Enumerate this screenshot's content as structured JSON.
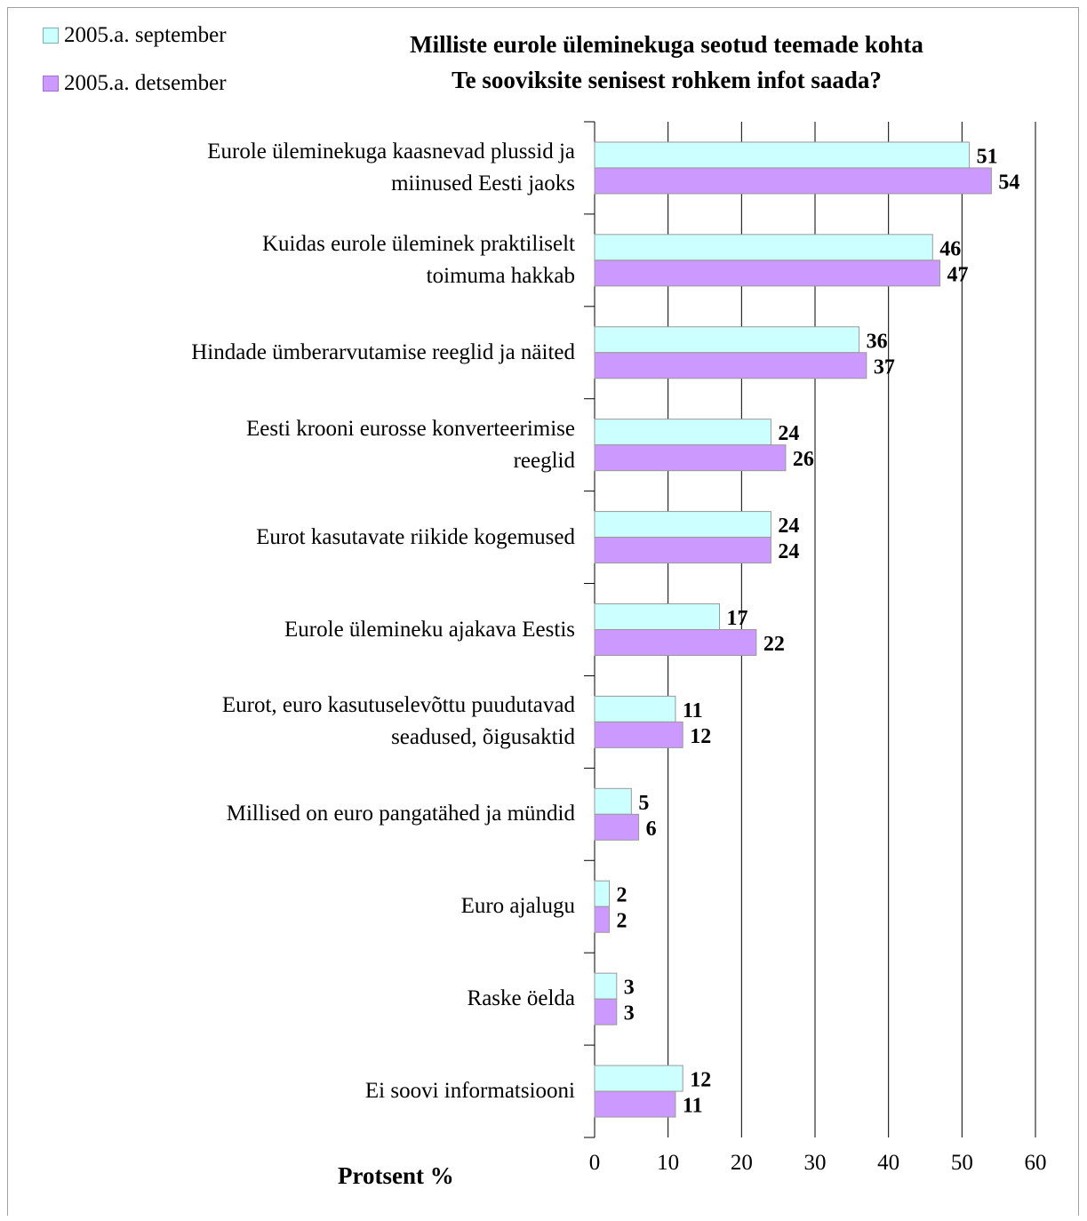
{
  "chart_data": {
    "type": "bar",
    "orientation": "horizontal",
    "title": "Milliste eurole üleminekuga seotud teemade kohta Te sooviksite senisest rohkem infot saada?",
    "title_lines": [
      "Milliste eurole üleminekuga seotud teemade kohta",
      "Te sooviksite senisest rohkem infot saada?"
    ],
    "xlabel": "Protsent %",
    "ylabel": "",
    "xlim": [
      0,
      60
    ],
    "xticks": [
      0,
      10,
      20,
      30,
      40,
      50,
      60
    ],
    "grid": true,
    "legend_position": "top-left",
    "categories": [
      "Eurole üleminekuga kaasnevad plussid ja miinused Eesti jaoks",
      "Kuidas eurole üleminek praktiliselt toimuma hakkab",
      "Hindade ümberarvutamise reeglid ja näited",
      "Eesti krooni eurosse konverteerimise reeglid",
      "Eurot kasutavate riikide kogemused",
      "Eurole ülemineku ajakava Eestis",
      "Eurot, euro kasutuselevõttu puudutavad seadused, õigusaktid",
      "Millised on euro pangatähed ja mündid",
      "Euro ajalugu",
      "Raske öelda",
      "Ei soovi informatsiooni"
    ],
    "category_lines": [
      [
        "Eurole üleminekuga kaasnevad plussid ja",
        "miinused Eesti jaoks"
      ],
      [
        "Kuidas eurole üleminek praktiliselt",
        "toimuma hakkab"
      ],
      [
        "Hindade ümberarvutamise reeglid ja näited"
      ],
      [
        "Eesti krooni eurosse konverteerimise",
        "reeglid"
      ],
      [
        "Eurot kasutavate riikide kogemused"
      ],
      [
        "Eurole ülemineku ajakava Eestis"
      ],
      [
        "Eurot, euro kasutuselevõttu puudutavad",
        "seadused, õigusaktid"
      ],
      [
        "Millised on euro pangatähed ja mündid"
      ],
      [
        "Euro ajalugu"
      ],
      [
        "Raske öelda"
      ],
      [
        "Ei soovi informatsiooni"
      ]
    ],
    "series": [
      {
        "name": "2005.a. september",
        "color": "#ccffff",
        "values": [
          51,
          46,
          36,
          24,
          24,
          17,
          11,
          5,
          2,
          3,
          12
        ]
      },
      {
        "name": "2005.a. detsember",
        "color": "#cc99ff",
        "values": [
          54,
          47,
          37,
          26,
          24,
          22,
          12,
          6,
          2,
          3,
          11
        ]
      }
    ]
  }
}
